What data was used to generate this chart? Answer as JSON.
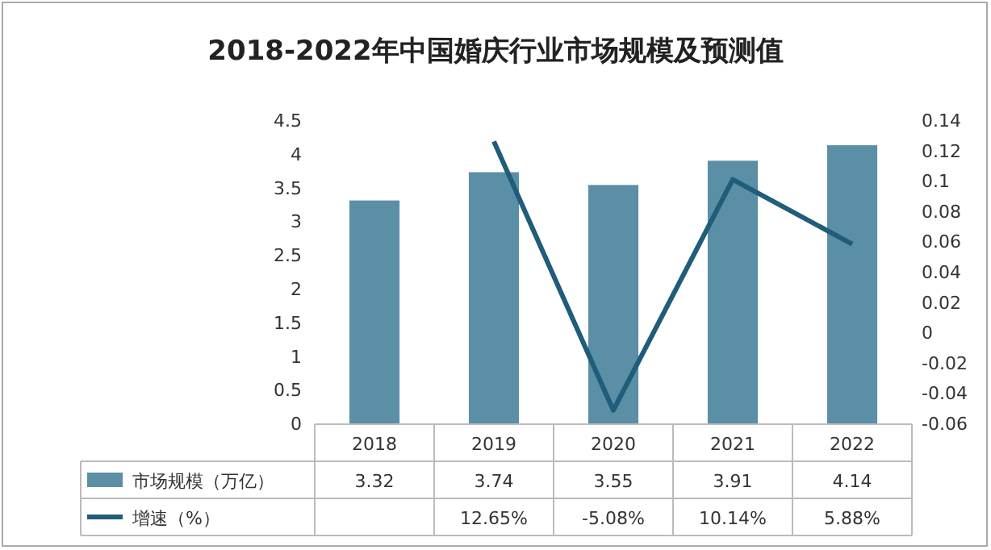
{
  "chart_data": {
    "type": "bar",
    "title": "2018-2022年中国婚庆行业市场规模及预测值",
    "categories": [
      "2018",
      "2019",
      "2020",
      "2021",
      "2022"
    ],
    "series": [
      {
        "name": "市场规模（万亿）",
        "color": "#5b8fa6",
        "values": [
          3.32,
          3.74,
          3.55,
          3.91,
          4.14
        ],
        "value_labels": [
          "3.32",
          "3.74",
          "3.55",
          "3.91",
          "4.14"
        ]
      },
      {
        "name": "增速（%）",
        "type": "line",
        "axis": "y2",
        "color": "#1f5d7a",
        "values": [
          null,
          0.1265,
          -0.0508,
          0.1014,
          0.0588
        ],
        "value_labels": [
          null,
          "12.65%",
          "-5.08%",
          "10.14%",
          "5.88%"
        ]
      }
    ],
    "ylim": [
      0,
      4.5
    ],
    "yticks": [
      0,
      0.5,
      1,
      1.5,
      2,
      2.5,
      3,
      3.5,
      4,
      4.5
    ],
    "y2lim": [
      -0.06,
      0.14
    ],
    "y2ticks": [
      -0.06,
      -0.04,
      -0.02,
      0,
      0.02,
      0.04,
      0.06,
      0.08,
      0.1,
      0.12,
      0.14
    ],
    "grid": false,
    "legend": "bottom",
    "marker": "none"
  }
}
